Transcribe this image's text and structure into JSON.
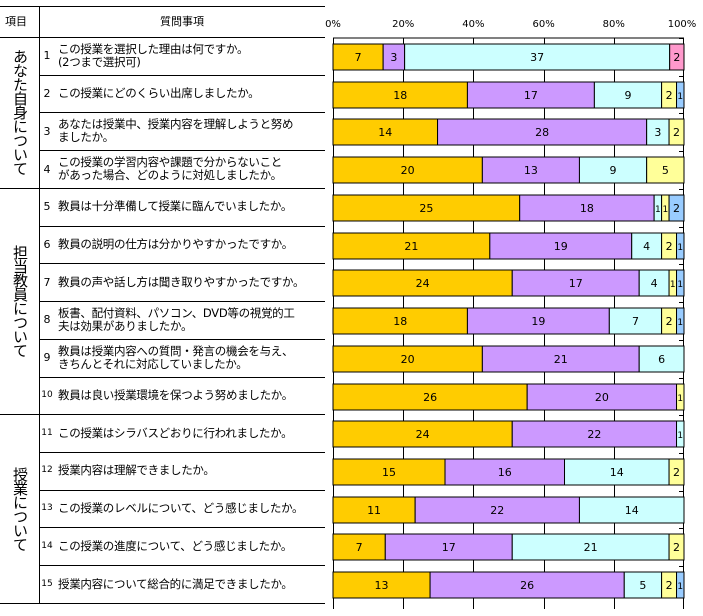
{
  "header": {
    "category_label": "項目",
    "question_label": "質問事項"
  },
  "categories": [
    {
      "label": "あなた自身について",
      "rows": [
        1,
        4
      ]
    },
    {
      "label": "担当教員について",
      "rows": [
        5,
        10
      ]
    },
    {
      "label": "授業について",
      "rows": [
        11,
        15
      ]
    }
  ],
  "questions": [
    {
      "num": "1",
      "text": "この授業を選択した理由は何ですか。\n(2つまで選択可)"
    },
    {
      "num": "2",
      "text": " この授業にどのくらい出席しましたか。"
    },
    {
      "num": "3",
      "text": "あなたは授業中、授業内容を理解しようと努め\nましたか。"
    },
    {
      "num": "4",
      "text": "この授業の学習内容や課題で分からないこと\nがあった場合、どのように対処しましたか。"
    },
    {
      "num": "5",
      "text": "教員は十分準備して授業に臨んでいましたか。"
    },
    {
      "num": "6",
      "text": "教員の説明の仕方は分かりやすかったですか。"
    },
    {
      "num": "7",
      "text": "教員の声や話し方は聞き取りやすかったですか。"
    },
    {
      "num": "8",
      "text": "板書、配付資料、パソコン、DVD等の視覚的工\n夫は効果がありましたか。"
    },
    {
      "num": "9",
      "text": "教員は授業内容への質問・発言の機会を与え、\nきちんとそれに対応していましたか。"
    },
    {
      "num": "10",
      "text": "教員は良い授業環境を保つよう努めましたか。"
    },
    {
      "num": "11",
      "text": "この授業はシラバスどおりに行われましたか。"
    },
    {
      "num": "12",
      "text": "授業内容は理解できましたか。"
    },
    {
      "num": "13",
      "text": "この授業のレベルについて、どう感じましたか。"
    },
    {
      "num": "14",
      "text": "この授業の進度について、どう感じましたか。"
    },
    {
      "num": "15",
      "text": "授業内容について総合的に満足できましたか。"
    }
  ],
  "chart_data": {
    "type": "bar",
    "orientation": "horizontal",
    "stacked": "percent",
    "categories": [
      "1",
      "2",
      "3",
      "4",
      "5",
      "6",
      "7",
      "8",
      "9",
      "10",
      "11",
      "12",
      "13",
      "14",
      "15"
    ],
    "xlim": [
      0,
      100
    ],
    "xticks": [
      "0%",
      "20%",
      "40%",
      "60%",
      "80%",
      "100%"
    ],
    "grid": true,
    "colors": [
      "#FFCC00",
      "#CC99FF",
      "#CCFFFF",
      "#FFFF99",
      "#99CCFF",
      "#FF99CC"
    ],
    "rows": [
      [
        {
          "v": 7,
          "c": 0
        },
        {
          "v": 3,
          "c": 1
        },
        {
          "v": 37,
          "c": 2
        },
        {
          "v": 2,
          "c": 5
        }
      ],
      [
        {
          "v": 18,
          "c": 0
        },
        {
          "v": 17,
          "c": 1
        },
        {
          "v": 9,
          "c": 2
        },
        {
          "v": 2,
          "c": 3
        },
        {
          "v": 1,
          "c": 4
        }
      ],
      [
        {
          "v": 14,
          "c": 0
        },
        {
          "v": 28,
          "c": 1
        },
        {
          "v": 3,
          "c": 2
        },
        {
          "v": 2,
          "c": 3
        }
      ],
      [
        {
          "v": 20,
          "c": 0
        },
        {
          "v": 13,
          "c": 1
        },
        {
          "v": 9,
          "c": 2
        },
        {
          "v": 5,
          "c": 3
        }
      ],
      [
        {
          "v": 25,
          "c": 0
        },
        {
          "v": 18,
          "c": 1
        },
        {
          "v": 1,
          "c": 2
        },
        {
          "v": 1,
          "c": 3
        },
        {
          "v": 2,
          "c": 4
        }
      ],
      [
        {
          "v": 21,
          "c": 0
        },
        {
          "v": 19,
          "c": 1
        },
        {
          "v": 4,
          "c": 2
        },
        {
          "v": 2,
          "c": 3
        },
        {
          "v": 1,
          "c": 4
        }
      ],
      [
        {
          "v": 24,
          "c": 0
        },
        {
          "v": 17,
          "c": 1
        },
        {
          "v": 4,
          "c": 2
        },
        {
          "v": 1,
          "c": 3
        },
        {
          "v": 1,
          "c": 4
        }
      ],
      [
        {
          "v": 18,
          "c": 0
        },
        {
          "v": 19,
          "c": 1
        },
        {
          "v": 7,
          "c": 2
        },
        {
          "v": 2,
          "c": 3
        },
        {
          "v": 1,
          "c": 4
        }
      ],
      [
        {
          "v": 20,
          "c": 0
        },
        {
          "v": 21,
          "c": 1
        },
        {
          "v": 6,
          "c": 2
        }
      ],
      [
        {
          "v": 26,
          "c": 0
        },
        {
          "v": 20,
          "c": 1
        },
        {
          "v": 1,
          "c": 3
        }
      ],
      [
        {
          "v": 24,
          "c": 0
        },
        {
          "v": 22,
          "c": 1
        },
        {
          "v": 1,
          "c": 2
        }
      ],
      [
        {
          "v": 15,
          "c": 0
        },
        {
          "v": 16,
          "c": 1
        },
        {
          "v": 14,
          "c": 2
        },
        {
          "v": 2,
          "c": 3
        }
      ],
      [
        {
          "v": 11,
          "c": 0
        },
        {
          "v": 22,
          "c": 1
        },
        {
          "v": 14,
          "c": 2
        }
      ],
      [
        {
          "v": 7,
          "c": 0
        },
        {
          "v": 17,
          "c": 1
        },
        {
          "v": 21,
          "c": 2
        },
        {
          "v": 2,
          "c": 3
        }
      ],
      [
        {
          "v": 13,
          "c": 0
        },
        {
          "v": 26,
          "c": 1
        },
        {
          "v": 5,
          "c": 2
        },
        {
          "v": 2,
          "c": 3
        },
        {
          "v": 1,
          "c": 4
        }
      ]
    ]
  }
}
